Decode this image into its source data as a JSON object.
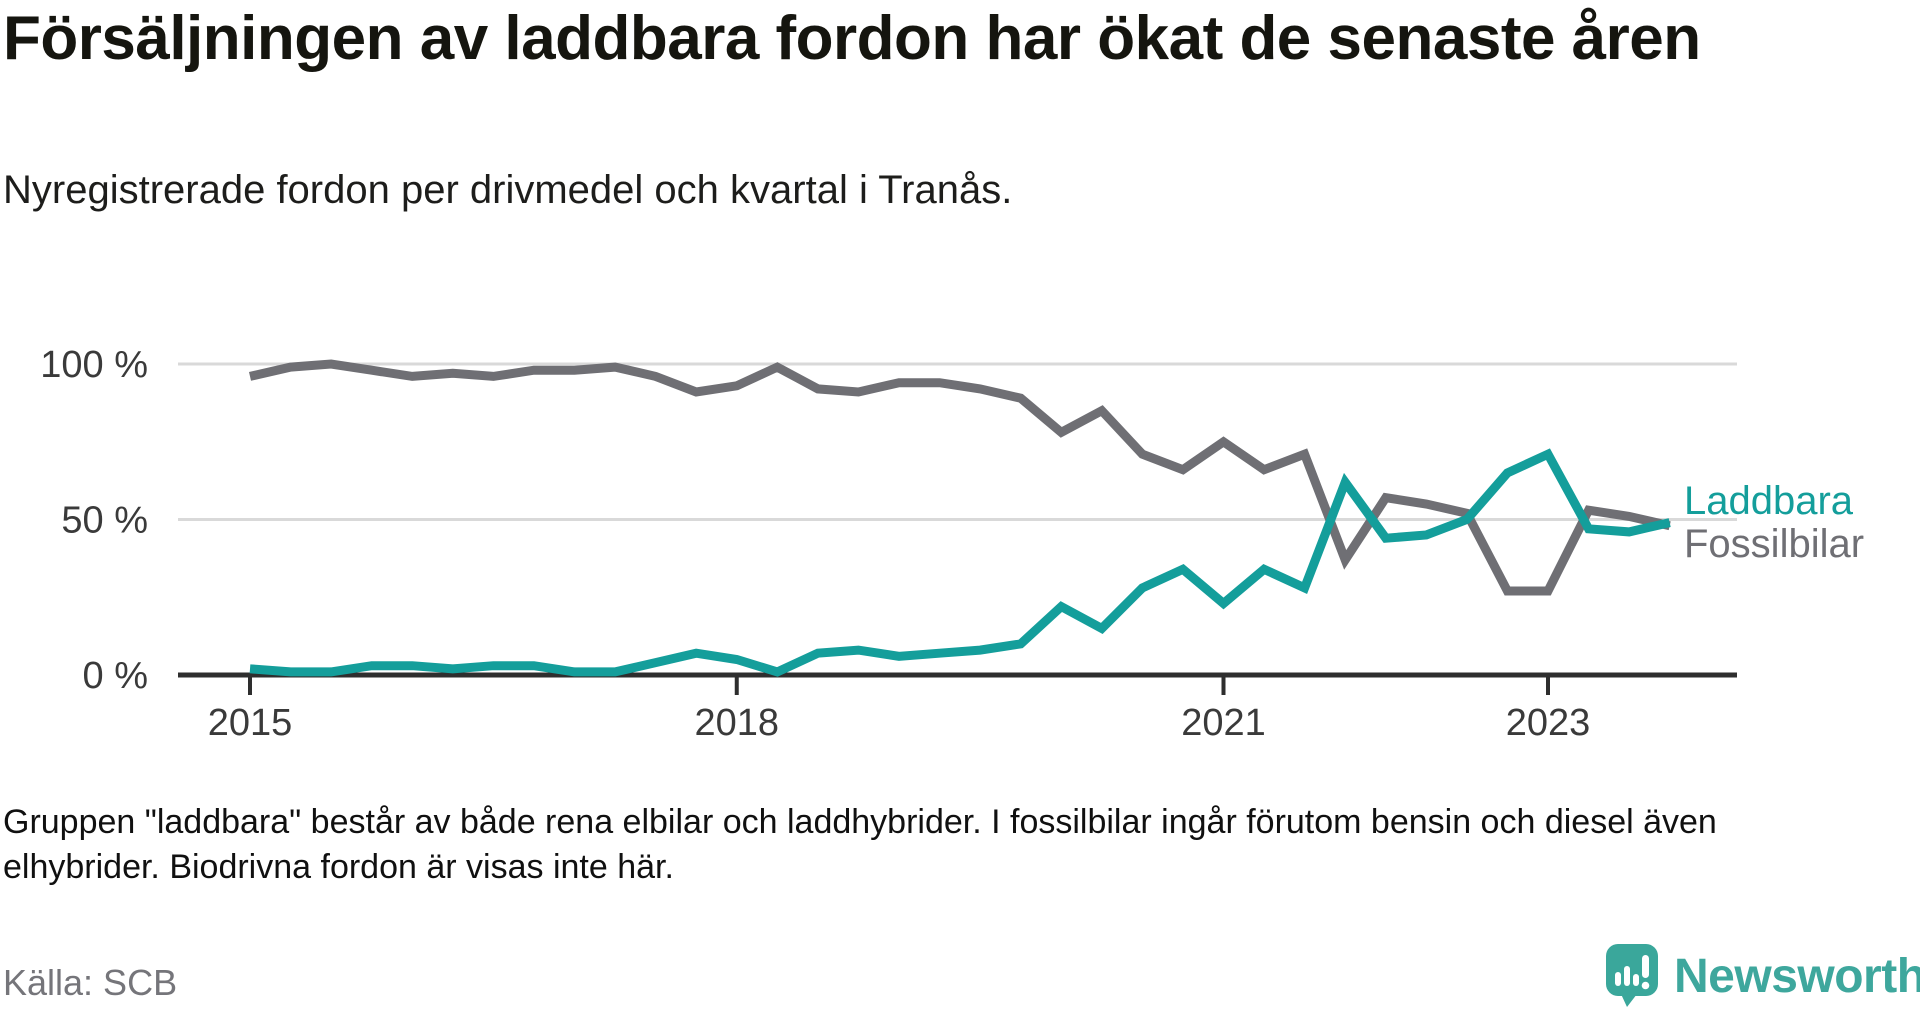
{
  "header": {
    "title": "Försäljningen av laddbara fordon har ökat de senaste åren",
    "subtitle": "Nyregistrerade fordon per drivmedel och kvartal i Tranås."
  },
  "chart_data": {
    "type": "line",
    "unit": "%",
    "grid": "horizontal",
    "legend_position": "right-end-of-lines",
    "ylim": [
      0,
      100
    ],
    "categories": [
      "2015 Q1",
      "2015 Q2",
      "2015 Q3",
      "2015 Q4",
      "2016 Q1",
      "2016 Q2",
      "2016 Q3",
      "2016 Q4",
      "2017 Q1",
      "2017 Q2",
      "2017 Q3",
      "2017 Q4",
      "2018 Q1",
      "2018 Q2",
      "2018 Q3",
      "2018 Q4",
      "2019 Q1",
      "2019 Q2",
      "2019 Q3",
      "2019 Q4",
      "2020 Q1",
      "2020 Q2",
      "2020 Q3",
      "2020 Q4",
      "2021 Q1",
      "2021 Q2",
      "2021 Q3",
      "2021 Q4",
      "2022 Q1",
      "2022 Q2",
      "2022 Q3",
      "2022 Q4",
      "2023 Q1",
      "2023 Q2",
      "2023 Q3",
      "2023 Q4"
    ],
    "series": [
      {
        "name": "Laddbara",
        "color": "#149e9b",
        "values": [
          2,
          1,
          1,
          3,
          3,
          2,
          3,
          3,
          1,
          1,
          4,
          7,
          5,
          1,
          7,
          8,
          6,
          7,
          8,
          10,
          22,
          15,
          28,
          34,
          23,
          34,
          28,
          62,
          44,
          45,
          50,
          65,
          71,
          47,
          46,
          49
        ]
      },
      {
        "name": "Fossilbilar",
        "color": "#6f6f74",
        "values": [
          96,
          99,
          100,
          98,
          96,
          97,
          96,
          98,
          98,
          99,
          96,
          91,
          93,
          99,
          92,
          91,
          94,
          94,
          92,
          89,
          78,
          85,
          71,
          66,
          75,
          66,
          71,
          37,
          57,
          55,
          52,
          27,
          27,
          53,
          51,
          48
        ]
      }
    ],
    "y_ticks": [
      {
        "value": 0,
        "label": "0 %"
      },
      {
        "value": 50,
        "label": "50 %"
      },
      {
        "value": 100,
        "label": "100 %"
      }
    ],
    "x_ticks": [
      {
        "label": "2015",
        "index": 0
      },
      {
        "label": "2018",
        "index": 12
      },
      {
        "label": "2021",
        "index": 24
      },
      {
        "label": "2023",
        "index": 32
      }
    ]
  },
  "footnote": {
    "line1": "Gruppen \"laddbara\" består av både rena elbilar och laddhybrider. I fossilbilar ingår förutom bensin och diesel även",
    "line2": "elhybrider. Biodrivna fordon är visas inte här."
  },
  "source": {
    "text": "Källa: SCB"
  },
  "logo": {
    "text": "Newsworthy",
    "color": "#3ea79d"
  }
}
